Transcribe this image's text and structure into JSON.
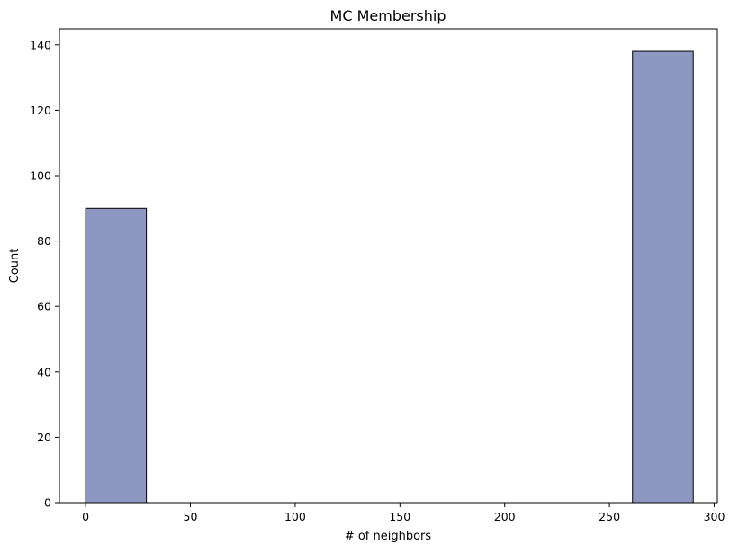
{
  "chart_data": {
    "type": "bar",
    "title": "MC Membership",
    "xlabel": "# of neighbors",
    "ylabel": "Count",
    "xlim": [
      -12.5,
      301.5
    ],
    "ylim": [
      0,
      144.9
    ],
    "x_ticks": [
      0,
      50,
      100,
      150,
      200,
      250,
      300
    ],
    "y_ticks": [
      0,
      20,
      40,
      60,
      80,
      100,
      120,
      140
    ],
    "bins": [
      {
        "x0": 0,
        "x1": 29,
        "count": 90
      },
      {
        "x0": 29,
        "x1": 58,
        "count": 0
      },
      {
        "x0": 58,
        "x1": 87,
        "count": 0
      },
      {
        "x0": 87,
        "x1": 116,
        "count": 0
      },
      {
        "x0": 116,
        "x1": 145,
        "count": 0
      },
      {
        "x0": 145,
        "x1": 174,
        "count": 0
      },
      {
        "x0": 174,
        "x1": 203,
        "count": 0
      },
      {
        "x0": 203,
        "x1": 232,
        "count": 0
      },
      {
        "x0": 232,
        "x1": 261,
        "count": 0
      },
      {
        "x0": 261,
        "x1": 290,
        "count": 138
      }
    ],
    "grid": false,
    "legend": "none",
    "colors": {
      "bar_fill": "#8d97c2",
      "bar_edge": "#000000",
      "axis": "#000000",
      "background": "#ffffff"
    }
  }
}
